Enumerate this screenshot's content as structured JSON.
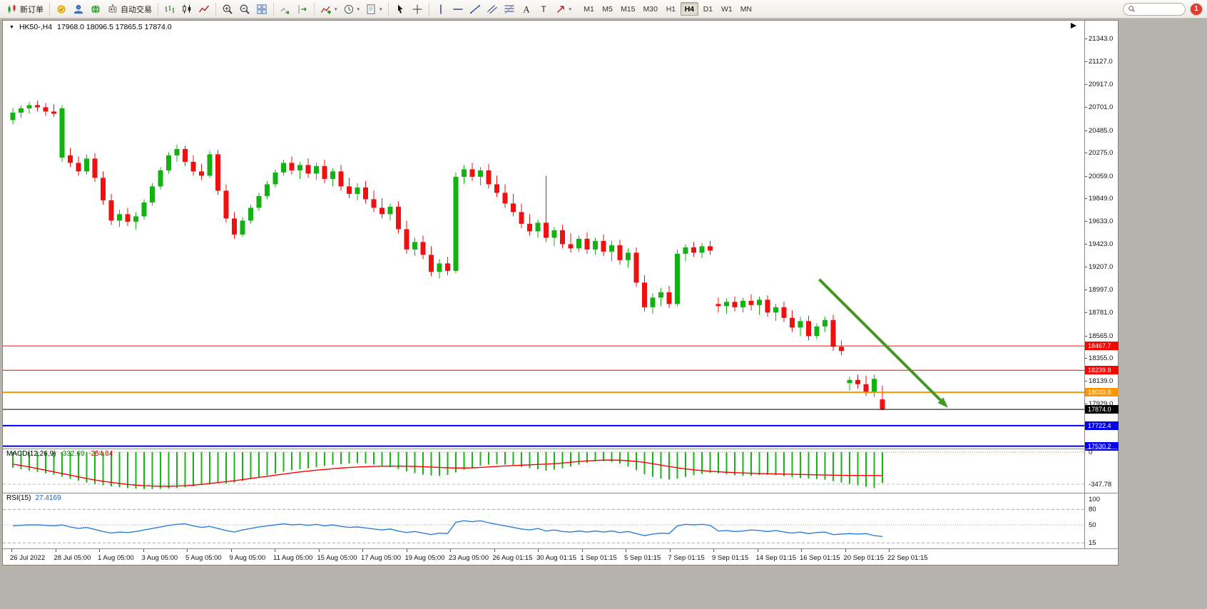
{
  "toolbar": {
    "groups": [
      {
        "items": [
          {
            "name": "new-order",
            "icon": "order",
            "label": "新订单"
          }
        ]
      },
      {
        "items": [
          {
            "name": "metaeditor",
            "icon": "bulb"
          },
          {
            "name": "market-watch",
            "icon": "person"
          },
          {
            "name": "community",
            "icon": "globe"
          },
          {
            "name": "auto-trading",
            "icon": "robot",
            "label": "自动交易"
          }
        ]
      },
      {
        "items": [
          {
            "name": "bar-chart-mode",
            "icon": "bars"
          },
          {
            "name": "candle-chart-mode",
            "icon": "candles"
          },
          {
            "name": "line-chart-mode",
            "icon": "linechart"
          }
        ]
      },
      {
        "items": [
          {
            "name": "zoom-in",
            "icon": "zoomin"
          },
          {
            "name": "zoom-out",
            "icon": "zoomout"
          },
          {
            "name": "tile-windows",
            "icon": "tile"
          }
        ]
      },
      {
        "items": [
          {
            "name": "auto-scroll",
            "icon": "autoscroll"
          },
          {
            "name": "chart-shift",
            "icon": "chartshift"
          }
        ]
      },
      {
        "items": [
          {
            "name": "indicators-list",
            "icon": "indicator",
            "caret": true
          },
          {
            "name": "periods",
            "icon": "clock",
            "caret": true
          },
          {
            "name": "templates",
            "icon": "template",
            "caret": true
          }
        ]
      },
      {
        "items": [
          {
            "name": "cursor",
            "icon": "cursor"
          },
          {
            "name": "crosshair",
            "icon": "crosshair"
          }
        ]
      },
      {
        "items": [
          {
            "name": "vertical-line",
            "icon": "vline"
          },
          {
            "name": "horizontal-line",
            "icon": "hline"
          },
          {
            "name": "trendline",
            "icon": "tline"
          },
          {
            "name": "equidistant-channel",
            "icon": "channel"
          },
          {
            "name": "fibonacci-retracement",
            "icon": "fibo"
          },
          {
            "name": "text",
            "icon": "textA"
          },
          {
            "name": "text-label",
            "icon": "labelT"
          },
          {
            "name": "arrows",
            "icon": "arrowobj",
            "caret": true
          }
        ]
      }
    ],
    "timeframes": [
      "M1",
      "M5",
      "M15",
      "M30",
      "H1",
      "H4",
      "D1",
      "W1",
      "MN"
    ],
    "active_timeframe": "H4",
    "search_value": "",
    "notification_count": "1"
  },
  "chart_data": {
    "type": "candlestick",
    "symbol_period": "HK50-,H4",
    "ohlc_text": "17968.0 18096.5 17865.5 17874.0",
    "ohlc": {
      "open": 17968.0,
      "high": 18096.5,
      "low": 17865.5,
      "close": 17874.0
    },
    "y_range": [
      17550,
      21470
    ],
    "price_axis_ticks": [
      "21343.0",
      "21127.0",
      "20917.0",
      "20701.0",
      "20485.0",
      "20275.0",
      "20059.0",
      "19849.0",
      "19633.0",
      "19423.0",
      "19207.0",
      "18997.0",
      "18781.0",
      "18565.0",
      "18355.0",
      "18139.0",
      "17929.0"
    ],
    "time_axis_labels": [
      "26 Jul 2022",
      "28 Jul 05:00",
      "1 Aug 05:00",
      "3 Aug 05:00",
      "5 Aug 05:00",
      "9 Aug 05:00",
      "11 Aug 05:00",
      "15 Aug 05:00",
      "17 Aug 05:00",
      "19 Aug 05:00",
      "23 Aug 05:00",
      "26 Aug 01:15",
      "30 Aug 01:15",
      "1 Sep 01:15",
      "5 Sep 01:15",
      "7 Sep 01:15",
      "9 Sep 01:15",
      "14 Sep 01:15",
      "16 Sep 01:15",
      "20 Sep 01:15",
      "22 Sep 01:15"
    ],
    "levels": [
      {
        "price": 18467.7,
        "label": "18467.7",
        "color": "#ff0000",
        "width": 1
      },
      {
        "price": 18239.8,
        "label": "18239.8",
        "color": "#ff0000",
        "width": 1
      },
      {
        "price": 18033.8,
        "label": "18033.8",
        "color": "#ff9500",
        "width": 2
      },
      {
        "price": 17874.0,
        "label": "17874.0",
        "color": "#000000",
        "width": 1
      },
      {
        "price": 17722.4,
        "label": "17722.4",
        "color": "#0000ee",
        "width": 2
      },
      {
        "price": 17530.2,
        "label": "17530.2",
        "color": "#0000ee",
        "width": 2
      }
    ],
    "annotations": [
      {
        "type": "arrow",
        "from_index": 98.3,
        "from_price": 19090,
        "to_index": 114,
        "to_price": 17890,
        "color": "#3f9b1e",
        "width": 4
      }
    ],
    "colors": {
      "up": "#12b212",
      "down": "#ef1010"
    },
    "candles": [
      [
        20580,
        20690,
        20540,
        20650
      ],
      [
        20650,
        20720,
        20600,
        20690
      ],
      [
        20690,
        20750,
        20640,
        20720
      ],
      [
        20720,
        20760,
        20660,
        20700
      ],
      [
        20700,
        20740,
        20620,
        20660
      ],
      [
        20660,
        20730,
        20610,
        20640
      ],
      [
        20230,
        20720,
        20190,
        20690
      ],
      [
        20250,
        20320,
        20140,
        20180
      ],
      [
        20180,
        20240,
        20060,
        20100
      ],
      [
        20100,
        20260,
        20070,
        20220
      ],
      [
        20220,
        20270,
        20000,
        20040
      ],
      [
        20040,
        20100,
        19790,
        19830
      ],
      [
        19830,
        19890,
        19600,
        19640
      ],
      [
        19640,
        19740,
        19580,
        19700
      ],
      [
        19700,
        19760,
        19590,
        19630
      ],
      [
        19630,
        19720,
        19560,
        19680
      ],
      [
        19680,
        19840,
        19650,
        19810
      ],
      [
        19810,
        19990,
        19780,
        19960
      ],
      [
        19960,
        20140,
        19930,
        20110
      ],
      [
        20110,
        20280,
        20080,
        20250
      ],
      [
        20250,
        20350,
        20190,
        20310
      ],
      [
        20310,
        20340,
        20150,
        20190
      ],
      [
        20190,
        20250,
        20060,
        20100
      ],
      [
        20100,
        20170,
        20020,
        20060
      ],
      [
        20060,
        20290,
        20040,
        20260
      ],
      [
        20260,
        20300,
        19880,
        19920
      ],
      [
        19920,
        19980,
        19620,
        19660
      ],
      [
        19660,
        19720,
        19470,
        19510
      ],
      [
        19510,
        19670,
        19490,
        19640
      ],
      [
        19640,
        19790,
        19610,
        19760
      ],
      [
        19760,
        19900,
        19730,
        19870
      ],
      [
        19870,
        20010,
        19840,
        19980
      ],
      [
        19980,
        20120,
        19950,
        20090
      ],
      [
        20090,
        20210,
        20060,
        20180
      ],
      [
        20180,
        20240,
        20070,
        20110
      ],
      [
        20110,
        20190,
        20030,
        20160
      ],
      [
        20160,
        20220,
        20040,
        20080
      ],
      [
        20080,
        20180,
        20020,
        20150
      ],
      [
        20150,
        20210,
        19990,
        20030
      ],
      [
        20030,
        20130,
        19960,
        20100
      ],
      [
        20100,
        20160,
        19920,
        19960
      ],
      [
        19960,
        20040,
        19850,
        19890
      ],
      [
        19890,
        19990,
        19830,
        19950
      ],
      [
        19950,
        20010,
        19800,
        19840
      ],
      [
        19840,
        19920,
        19720,
        19760
      ],
      [
        19760,
        19850,
        19660,
        19700
      ],
      [
        19700,
        19800,
        19640,
        19770
      ],
      [
        19770,
        19820,
        19520,
        19560
      ],
      [
        19560,
        19640,
        19330,
        19370
      ],
      [
        19370,
        19480,
        19310,
        19440
      ],
      [
        19440,
        19500,
        19280,
        19320
      ],
      [
        19320,
        19400,
        19120,
        19160
      ],
      [
        19160,
        19280,
        19100,
        19240
      ],
      [
        19240,
        19300,
        19130,
        19170
      ],
      [
        19170,
        20090,
        19150,
        20050
      ],
      [
        20050,
        20160,
        19980,
        20120
      ],
      [
        20120,
        20180,
        20010,
        20050
      ],
      [
        20050,
        20140,
        19970,
        20110
      ],
      [
        20110,
        20170,
        19940,
        19980
      ],
      [
        19980,
        20060,
        19860,
        19900
      ],
      [
        19900,
        19980,
        19760,
        19800
      ],
      [
        19800,
        19890,
        19680,
        19720
      ],
      [
        19720,
        19800,
        19570,
        19610
      ],
      [
        19610,
        19700,
        19500,
        19540
      ],
      [
        19540,
        19650,
        19480,
        19620
      ],
      [
        19620,
        20060,
        19440,
        19480
      ],
      [
        19480,
        19580,
        19400,
        19550
      ],
      [
        19550,
        19600,
        19380,
        19420
      ],
      [
        19420,
        19520,
        19340,
        19380
      ],
      [
        19380,
        19500,
        19350,
        19470
      ],
      [
        19470,
        19530,
        19330,
        19370
      ],
      [
        19370,
        19480,
        19320,
        19450
      ],
      [
        19450,
        19510,
        19310,
        19350
      ],
      [
        19350,
        19450,
        19260,
        19410
      ],
      [
        19410,
        19460,
        19230,
        19270
      ],
      [
        19270,
        19380,
        19200,
        19340
      ],
      [
        19340,
        19390,
        19020,
        19060
      ],
      [
        19060,
        19130,
        18790,
        18830
      ],
      [
        18830,
        18960,
        18770,
        18920
      ],
      [
        18920,
        19010,
        18840,
        18970
      ],
      [
        18970,
        19030,
        18820,
        18860
      ],
      [
        18860,
        19370,
        18840,
        19330
      ],
      [
        19330,
        19420,
        19260,
        19390
      ],
      [
        19390,
        19440,
        19300,
        19340
      ],
      [
        19340,
        19430,
        19290,
        19400
      ],
      [
        19400,
        19450,
        19320,
        19360
      ],
      [
        18860,
        18920,
        18780,
        18840
      ],
      [
        18840,
        18910,
        18770,
        18880
      ],
      [
        18880,
        18930,
        18790,
        18830
      ],
      [
        18830,
        18920,
        18780,
        18890
      ],
      [
        18890,
        18950,
        18800,
        18850
      ],
      [
        18850,
        18930,
        18760,
        18900
      ],
      [
        18900,
        18940,
        18740,
        18780
      ],
      [
        18780,
        18860,
        18700,
        18830
      ],
      [
        18830,
        18880,
        18690,
        18730
      ],
      [
        18730,
        18800,
        18600,
        18640
      ],
      [
        18640,
        18740,
        18560,
        18700
      ],
      [
        18700,
        18750,
        18520,
        18560
      ],
      [
        18560,
        18680,
        18530,
        18650
      ],
      [
        18650,
        18740,
        18600,
        18710
      ],
      [
        18710,
        18760,
        18420,
        18460
      ],
      [
        18460,
        18520,
        18380,
        18420
      ],
      [
        18120,
        18180,
        18050,
        18150
      ],
      [
        18150,
        18200,
        18070,
        18110
      ],
      [
        18110,
        18190,
        18000,
        18030
      ],
      [
        18030,
        18200,
        17990,
        18160
      ],
      [
        17968,
        18096.5,
        17865.5,
        17874
      ]
    ],
    "indicators": {
      "macd": {
        "label": "MACD(12,26,9)",
        "value_main": "-332.69",
        "value_signal": "-254.64",
        "axis_labels": [
          "0",
          "-347.78"
        ],
        "axis_values": [
          0,
          -347.78
        ],
        "colors": {
          "histogram": "#18b418",
          "signal": "#ff0000"
        },
        "histogram": [
          -170,
          -185,
          -200,
          -215,
          -230,
          -245,
          -265,
          -290,
          -310,
          -330,
          -345,
          -360,
          -372,
          -382,
          -390,
          -396,
          -400,
          -400,
          -398,
          -394,
          -388,
          -380,
          -370,
          -358,
          -346,
          -338,
          -342,
          -330,
          -312,
          -292,
          -272,
          -252,
          -232,
          -212,
          -196,
          -186,
          -176,
          -162,
          -150,
          -140,
          -130,
          -124,
          -120,
          -124,
          -134,
          -148,
          -164,
          -184,
          -208,
          -228,
          -244,
          -254,
          -258,
          -248,
          -220,
          -192,
          -166,
          -146,
          -136,
          -130,
          -136,
          -146,
          -160,
          -174,
          -186,
          -200,
          -190,
          -176,
          -156,
          -136,
          -116,
          -100,
          -96,
          -106,
          -126,
          -156,
          -196,
          -240,
          -268,
          -288,
          -298,
          -288,
          -268,
          -250,
          -236,
          -226,
          -230,
          -240,
          -250,
          -256,
          -256,
          -250,
          -246,
          -250,
          -260,
          -270,
          -280,
          -286,
          -292,
          -300,
          -314,
          -330,
          -344,
          -360,
          -376,
          -390,
          -333
        ],
        "signal": [
          -130,
          -145,
          -160,
          -178,
          -196,
          -214,
          -232,
          -250,
          -268,
          -286,
          -302,
          -316,
          -328,
          -340,
          -350,
          -358,
          -364,
          -368,
          -370,
          -370,
          -368,
          -364,
          -358,
          -350,
          -340,
          -330,
          -320,
          -310,
          -298,
          -286,
          -274,
          -262,
          -250,
          -238,
          -226,
          -215,
          -205,
          -196,
          -188,
          -180,
          -173,
          -167,
          -162,
          -158,
          -155,
          -153,
          -152,
          -152,
          -153,
          -155,
          -158,
          -162,
          -166,
          -170,
          -172,
          -172,
          -170,
          -166,
          -161,
          -155,
          -150,
          -146,
          -142,
          -138,
          -134,
          -130,
          -125,
          -118,
          -110,
          -102,
          -95,
          -90,
          -87,
          -86,
          -88,
          -93,
          -101,
          -112,
          -126,
          -141,
          -156,
          -170,
          -182,
          -192,
          -200,
          -207,
          -213,
          -218,
          -222,
          -226,
          -229,
          -232,
          -234,
          -236,
          -238,
          -240,
          -242,
          -244,
          -246,
          -248,
          -250,
          -252,
          -253,
          -254,
          -254,
          -254,
          -254.64
        ]
      },
      "rsi": {
        "label": "RSI(15)",
        "value": "27.4169",
        "axis_labels": [
          "100",
          "80",
          "50",
          "15"
        ],
        "axis_values": [
          100,
          80,
          50,
          15
        ],
        "levels": [
          80,
          50,
          15
        ],
        "color": "#2e7fd6",
        "line": [
          48,
          49,
          50,
          50,
          49,
          48,
          50,
          46,
          43,
          45,
          41,
          37,
          34,
          36,
          35,
          37,
          40,
          43,
          46,
          49,
          51,
          52,
          48,
          45,
          47,
          43,
          39,
          36,
          40,
          43,
          46,
          48,
          50,
          52,
          50,
          51,
          49,
          51,
          48,
          50,
          47,
          45,
          46,
          44,
          42,
          40,
          42,
          38,
          35,
          37,
          34,
          31,
          34,
          33,
          55,
          58,
          56,
          58,
          54,
          51,
          48,
          45,
          42,
          40,
          43,
          38,
          40,
          37,
          36,
          38,
          36,
          38,
          36,
          38,
          35,
          37,
          33,
          29,
          32,
          34,
          33,
          48,
          51,
          50,
          51,
          49,
          38,
          39,
          37,
          38,
          40,
          39,
          37,
          39,
          36,
          34,
          36,
          33,
          35,
          36,
          31,
          32,
          33,
          32,
          33,
          29,
          27.4
        ]
      }
    }
  }
}
